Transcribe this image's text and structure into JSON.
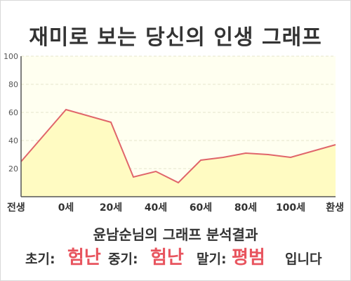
{
  "page": {
    "title": "재미로 보는 당신의 인생 그래프",
    "summary": "윤남순님의 그래프 분석결과",
    "stages": {
      "early_label": "초기:",
      "early_value": "험난",
      "mid_label": "중기:",
      "mid_value": "험난",
      "late_label": "말기:",
      "late_value": "평범",
      "suffix": "입니다"
    }
  },
  "colors": {
    "line": "#e0656a",
    "fill": "#fffbc2",
    "plot_bg": "#fffff0",
    "emphasis": "#e8545e"
  },
  "chart_data": {
    "type": "area",
    "title": "재미로 보는 당신의 인생 그래프",
    "xlabel": "",
    "ylabel": "",
    "categories": [
      "전생",
      "0세",
      "20세",
      "40세",
      "60세",
      "80세",
      "100세",
      "환생"
    ],
    "x": [
      0,
      1,
      2,
      2.5,
      3,
      3.5,
      4,
      4.5,
      5,
      5.5,
      6,
      7
    ],
    "values": [
      25,
      62,
      53,
      14,
      18,
      10,
      26,
      28,
      31,
      30,
      28,
      37
    ],
    "ylim": [
      0,
      100
    ],
    "yticks": [
      20,
      40,
      60,
      80,
      100
    ],
    "grid": true,
    "legend": "none"
  }
}
